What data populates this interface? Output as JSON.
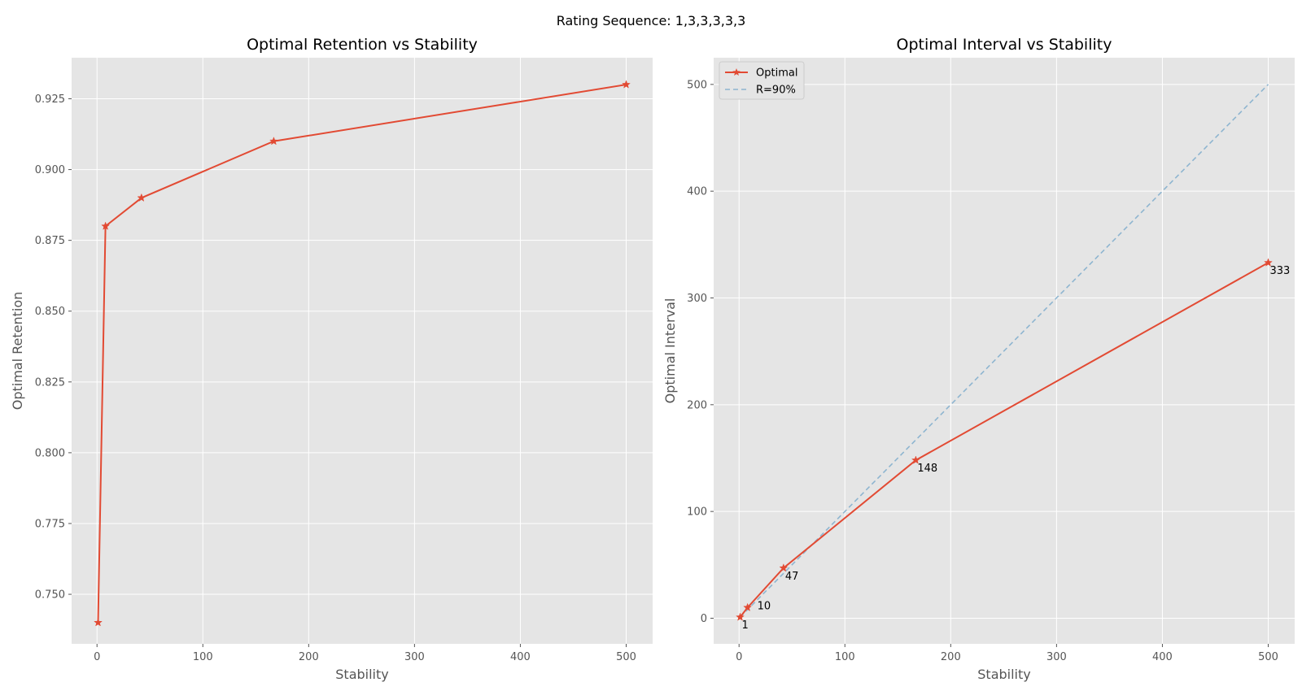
{
  "figure": {
    "suptitle": "Rating Sequence: 1,3,3,3,3,3"
  },
  "colors": {
    "background": "#ffffff",
    "axes_face": "#e5e5e5",
    "grid": "#ffffff",
    "optimal_line": "#e24a33",
    "reference_line": "#8eb5d0",
    "tick_text": "#555555"
  },
  "chart_data": [
    {
      "type": "line",
      "title": "Optimal Retention vs Stability",
      "xlabel": "Stability",
      "ylabel": "Optimal Retention",
      "xlim": [
        -24,
        525
      ],
      "ylim": [
        0.7325,
        0.9395
      ],
      "xticks": [
        0,
        100,
        200,
        300,
        400,
        500
      ],
      "xtick_labels": [
        "0",
        "100",
        "200",
        "300",
        "400",
        "500"
      ],
      "yticks": [
        0.75,
        0.775,
        0.8,
        0.825,
        0.85,
        0.875,
        0.9,
        0.925
      ],
      "ytick_labels": [
        "0.750",
        "0.775",
        "0.800",
        "0.825",
        "0.850",
        "0.875",
        "0.900",
        "0.925"
      ],
      "grid": true,
      "series": [
        {
          "x": [
            1,
            8,
            42,
            167,
            500
          ],
          "y": [
            0.74,
            0.88,
            0.89,
            0.91,
            0.93
          ],
          "marker": "star",
          "line": "solid"
        }
      ]
    },
    {
      "type": "line",
      "title": "Optimal Interval vs Stability",
      "xlabel": "Stability",
      "ylabel": "Optimal Interval",
      "xlim": [
        -24,
        525
      ],
      "ylim": [
        -24,
        525
      ],
      "xticks": [
        0,
        100,
        200,
        300,
        400,
        500
      ],
      "xtick_labels": [
        "0",
        "100",
        "200",
        "300",
        "400",
        "500"
      ],
      "yticks": [
        0,
        100,
        200,
        300,
        400,
        500
      ],
      "ytick_labels": [
        "0",
        "100",
        "200",
        "300",
        "400",
        "500"
      ],
      "grid": true,
      "legend_position": "top-left",
      "series": [
        {
          "name": "Optimal",
          "x": [
            1,
            8,
            42,
            167,
            500
          ],
          "y": [
            1,
            10,
            47,
            148,
            333
          ],
          "labels": [
            "1",
            "10",
            "47",
            "148",
            "333"
          ],
          "marker": "star",
          "line": "solid"
        },
        {
          "name": "R=90%",
          "x": [
            1,
            500
          ],
          "y": [
            1,
            500
          ],
          "marker": "none",
          "line": "dashed"
        }
      ]
    }
  ]
}
